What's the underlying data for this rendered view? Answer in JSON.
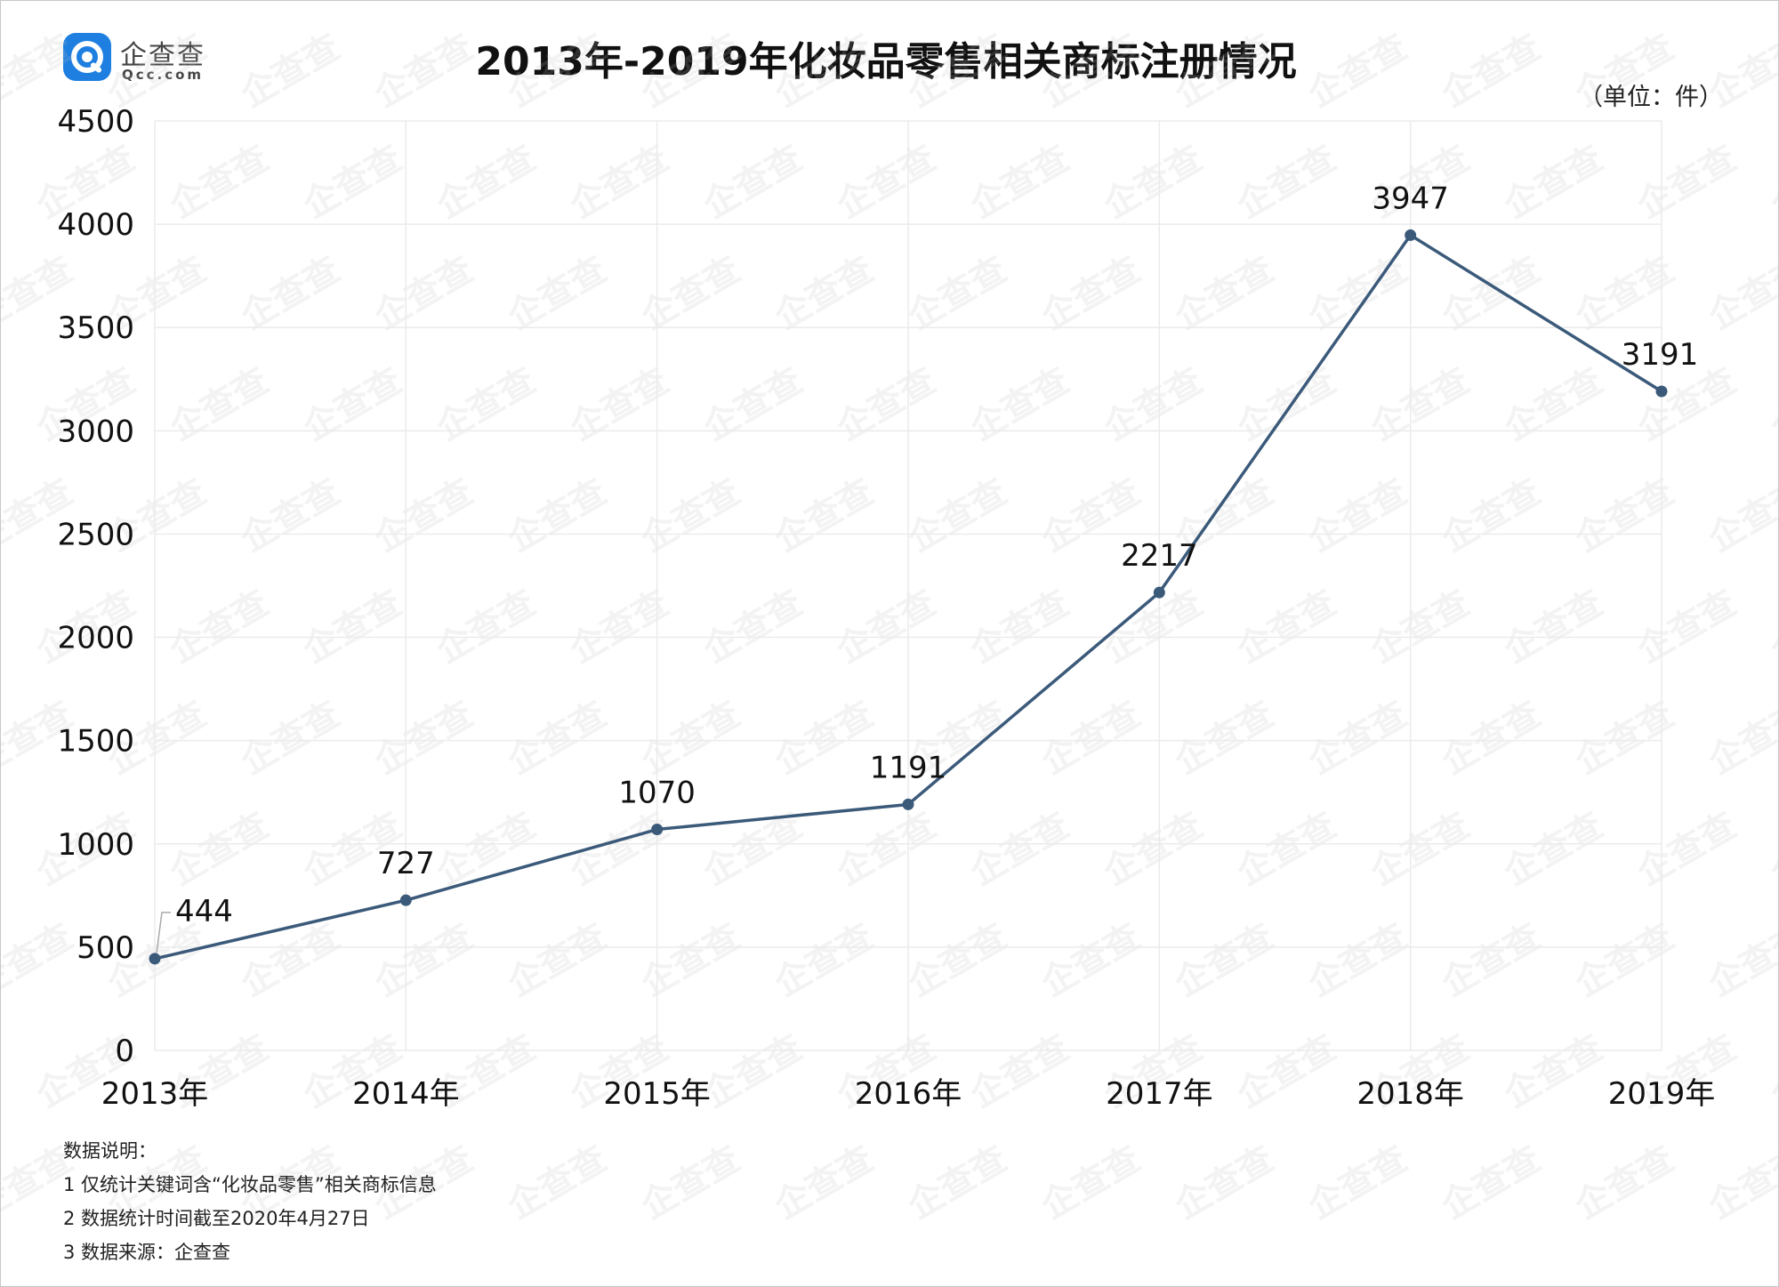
{
  "brand": {
    "name": "企查查",
    "domain": "Qcc.com",
    "logo_icon": "qcc-logo-icon"
  },
  "unit_label": "（单位：件）",
  "chart_data": {
    "type": "line",
    "title": "2013年-2019年化妆品零售相关商标注册情况",
    "xlabel": "",
    "ylabel": "",
    "categories": [
      "2013年",
      "2014年",
      "2015年",
      "2016年",
      "2017年",
      "2018年",
      "2019年"
    ],
    "series": [
      {
        "values": [
          444,
          727,
          1070,
          1191,
          2217,
          3947,
          3191
        ],
        "color": "#3b5a7a"
      }
    ],
    "ylim": [
      0,
      4500
    ],
    "yticks": [
      "0",
      "500",
      "1000",
      "1500",
      "2000",
      "2500",
      "3000",
      "3500",
      "4000",
      "4500"
    ],
    "grid": true,
    "legend": "none"
  },
  "notes": [
    "数据说明：",
    "1 仅统计关键词含“化妆品零售”相关商标信息",
    "2 数据统计时间截至2020年4月27日",
    "3 数据来源：企查查"
  ],
  "watermark": "企查查"
}
